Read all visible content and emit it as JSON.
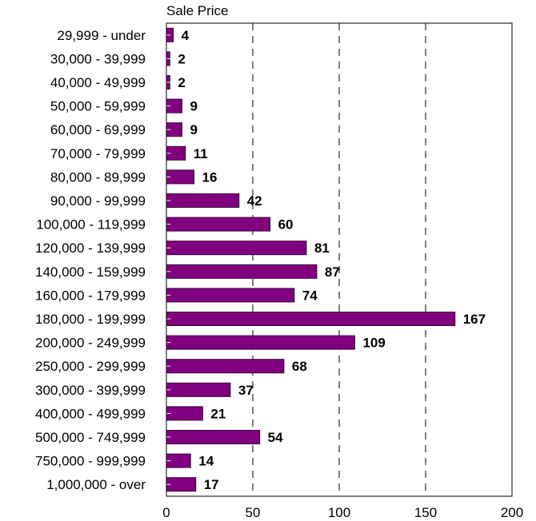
{
  "chart_data": {
    "type": "bar",
    "orientation": "horizontal",
    "title": "",
    "subtitle": "Sale Price",
    "categories": [
      "29,999 - under",
      "30,000 - 39,999",
      "40,000 - 49,999",
      "50,000 - 59,999",
      "60,000 - 69,999",
      "70,000 - 79,999",
      "80,000 - 89,999",
      "90,000 - 99,999",
      "100,000 - 119,999",
      "120,000 - 139,999",
      "140,000 - 159,999",
      "160,000 - 179,999",
      "180,000 - 199,999",
      "200,000 - 249,999",
      "250,000 - 299,999",
      "300,000 - 399,999",
      "400,000 - 499,999",
      "500,000 - 749,999",
      "750,000 - 999,999",
      "1,000,000 - over"
    ],
    "values": [
      4,
      2,
      2,
      9,
      9,
      11,
      16,
      42,
      60,
      81,
      87,
      74,
      167,
      109,
      68,
      37,
      21,
      54,
      14,
      17
    ],
    "data_labels": [
      "4",
      "2",
      "2",
      "9",
      "9",
      "11",
      "16",
      "42",
      "60",
      "81",
      "87",
      "74",
      "167",
      "109",
      "68",
      "37",
      "21",
      "54",
      "14",
      "17"
    ],
    "xlim": [
      0,
      200
    ],
    "xticks": [
      0,
      50,
      100,
      150,
      200
    ],
    "xtick_labels": [
      "0",
      "50",
      "100",
      "150",
      "200"
    ],
    "grid": "vertical dashed",
    "bar_color": "#800080",
    "bar_border_color": "#3d003d"
  }
}
